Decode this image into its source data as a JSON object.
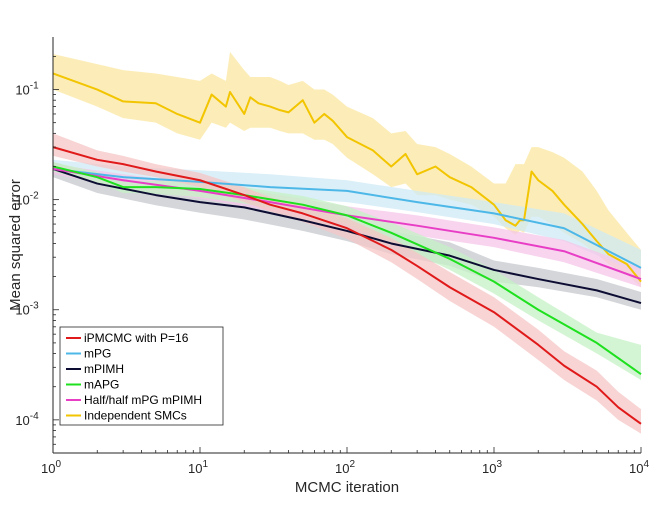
{
  "chart_data": {
    "type": "line",
    "title": "",
    "xlabel": "MCMC iteration",
    "ylabel": "Mean squared error",
    "xscale": "log",
    "yscale": "log",
    "xlim": [
      1,
      10000
    ],
    "ylim": [
      5e-05,
      0.3
    ],
    "grid": false,
    "legend_position": "bottom-left",
    "x_ticks": [
      {
        "value": 1,
        "base": "10",
        "exp": "0"
      },
      {
        "value": 10,
        "base": "10",
        "exp": "1"
      },
      {
        "value": 100,
        "base": "10",
        "exp": "2"
      },
      {
        "value": 1000,
        "base": "10",
        "exp": "3"
      },
      {
        "value": 10000,
        "base": "10",
        "exp": "4"
      }
    ],
    "y_ticks": [
      {
        "value": 0.0001,
        "base": "10",
        "exp": "-4"
      },
      {
        "value": 0.001,
        "base": "10",
        "exp": "-3"
      },
      {
        "value": 0.01,
        "base": "10",
        "exp": "-2"
      },
      {
        "value": 0.1,
        "base": "10",
        "exp": "-1"
      }
    ],
    "series": [
      {
        "name": "Independent SMCs",
        "color": "#f2c500",
        "band_color": "#fbe7a0",
        "x": [
          1,
          2,
          3,
          5,
          7,
          10,
          12,
          15,
          16,
          20,
          22,
          25,
          30,
          35,
          40,
          50,
          60,
          70,
          80,
          100,
          150,
          200,
          250,
          300,
          400,
          500,
          700,
          1000,
          1200,
          1400,
          1500,
          1600,
          1800,
          2000,
          2500,
          3000,
          4000,
          5000,
          6000,
          8000,
          10000
        ],
        "y": [
          0.14,
          0.1,
          0.078,
          0.075,
          0.06,
          0.05,
          0.09,
          0.07,
          0.095,
          0.06,
          0.085,
          0.075,
          0.07,
          0.065,
          0.062,
          0.08,
          0.05,
          0.06,
          0.052,
          0.037,
          0.028,
          0.02,
          0.026,
          0.017,
          0.02,
          0.016,
          0.013,
          0.009,
          0.0065,
          0.0058,
          0.0065,
          0.0065,
          0.018,
          0.015,
          0.012,
          0.009,
          0.006,
          0.0042,
          0.0032,
          0.0026,
          0.0018
        ],
        "lower": [
          0.1,
          0.07,
          0.055,
          0.05,
          0.04,
          0.035,
          0.05,
          0.045,
          0.05,
          0.042,
          0.045,
          0.045,
          0.045,
          0.042,
          0.04,
          0.04,
          0.035,
          0.035,
          0.032,
          0.024,
          0.017,
          0.013,
          0.014,
          0.011,
          0.011,
          0.01,
          0.009,
          0.007,
          0.0055,
          0.0048,
          0.0052,
          0.005,
          0.007,
          0.007,
          0.006,
          0.005,
          0.004,
          0.0032,
          0.0026,
          0.0021,
          0.0016
        ],
        "upper": [
          0.21,
          0.17,
          0.15,
          0.14,
          0.13,
          0.12,
          0.14,
          0.12,
          0.22,
          0.15,
          0.13,
          0.13,
          0.13,
          0.12,
          0.11,
          0.12,
          0.1,
          0.1,
          0.09,
          0.07,
          0.055,
          0.04,
          0.042,
          0.032,
          0.03,
          0.026,
          0.02,
          0.014,
          0.014,
          0.021,
          0.021,
          0.021,
          0.03,
          0.03,
          0.027,
          0.024,
          0.018,
          0.012,
          0.008,
          0.005,
          0.0035
        ]
      },
      {
        "name": "mPG",
        "color": "#4db8e8",
        "band_color": "#cfe9f6",
        "x": [
          1,
          3,
          10,
          30,
          100,
          300,
          1000,
          3000,
          10000
        ],
        "y": [
          0.019,
          0.016,
          0.0145,
          0.013,
          0.012,
          0.0095,
          0.0075,
          0.0055,
          0.0024
        ],
        "lower": [
          0.017,
          0.014,
          0.012,
          0.0105,
          0.0095,
          0.0077,
          0.006,
          0.0042,
          0.0021
        ],
        "upper": [
          0.023,
          0.02,
          0.0185,
          0.017,
          0.015,
          0.012,
          0.0095,
          0.0075,
          0.0035
        ]
      },
      {
        "name": "mPIMH",
        "color": "#0d0d33",
        "band_color": "#c6c8ce",
        "x": [
          1,
          2,
          5,
          10,
          20,
          50,
          100,
          200,
          500,
          1000,
          2000,
          5000,
          10000
        ],
        "y": [
          0.019,
          0.014,
          0.011,
          0.0095,
          0.0085,
          0.0065,
          0.0052,
          0.004,
          0.0031,
          0.0023,
          0.0019,
          0.0015,
          0.00115
        ],
        "lower": [
          0.016,
          0.0115,
          0.0089,
          0.0076,
          0.0066,
          0.0052,
          0.0042,
          0.0032,
          0.0025,
          0.0018,
          0.0016,
          0.0013,
          0.001
        ],
        "upper": [
          0.022,
          0.017,
          0.0135,
          0.0117,
          0.0105,
          0.0082,
          0.0066,
          0.0052,
          0.0041,
          0.0028,
          0.0024,
          0.0019,
          0.00145
        ]
      },
      {
        "name": "Half/half mPG mPIMH",
        "color": "#e83ec6",
        "band_color": "#f6c6ea",
        "x": [
          1,
          3,
          10,
          30,
          100,
          300,
          1000,
          3000,
          10000
        ],
        "y": [
          0.019,
          0.015,
          0.012,
          0.0095,
          0.0072,
          0.0058,
          0.0045,
          0.0034,
          0.0019
        ],
        "lower": [
          0.017,
          0.013,
          0.0102,
          0.0079,
          0.006,
          0.0047,
          0.0037,
          0.0027,
          0.0016
        ],
        "upper": [
          0.021,
          0.017,
          0.014,
          0.0114,
          0.0087,
          0.0072,
          0.0056,
          0.0043,
          0.0024
        ]
      },
      {
        "name": "mAPG",
        "color": "#1ee01e",
        "band_color": "#c6f2c6",
        "x": [
          1,
          2,
          3,
          5,
          10,
          20,
          50,
          100,
          200,
          500,
          1000,
          2000,
          5000,
          10000
        ],
        "y": [
          0.02,
          0.016,
          0.013,
          0.013,
          0.0125,
          0.011,
          0.009,
          0.0072,
          0.005,
          0.0029,
          0.0018,
          0.001,
          0.0005,
          0.00026
        ],
        "lower": [
          0.018,
          0.0142,
          0.0115,
          0.0113,
          0.0105,
          0.0092,
          0.0075,
          0.006,
          0.0041,
          0.0023,
          0.0014,
          0.0008,
          0.0004,
          0.00023
        ],
        "upper": [
          0.022,
          0.0178,
          0.0145,
          0.0148,
          0.0145,
          0.013,
          0.0108,
          0.0087,
          0.0062,
          0.0037,
          0.0023,
          0.0013,
          0.00062,
          0.00048
        ]
      },
      {
        "name": "iPMCMC with P=16",
        "color": "#e01a1a",
        "band_color": "#f6c6c6",
        "x": [
          1,
          2,
          3,
          5,
          10,
          20,
          30,
          50,
          100,
          200,
          300,
          500,
          1000,
          2000,
          3000,
          5000,
          7000,
          10000
        ],
        "y": [
          0.03,
          0.023,
          0.021,
          0.018,
          0.015,
          0.011,
          0.009,
          0.0075,
          0.0055,
          0.0035,
          0.0025,
          0.0016,
          0.00095,
          0.00048,
          0.00031,
          0.0002,
          0.00013,
          9.2e-05
        ],
        "lower": [
          0.025,
          0.02,
          0.018,
          0.016,
          0.013,
          0.0095,
          0.0078,
          0.0063,
          0.0044,
          0.0027,
          0.0019,
          0.0012,
          0.0007,
          0.00035,
          0.00023,
          0.00015,
          0.0001,
          7.5e-05
        ],
        "upper": [
          0.04,
          0.028,
          0.025,
          0.021,
          0.0175,
          0.013,
          0.0105,
          0.0088,
          0.0068,
          0.0045,
          0.0033,
          0.0022,
          0.0013,
          0.00066,
          0.00042,
          0.00028,
          0.00018,
          0.000125
        ]
      }
    ],
    "legend": [
      {
        "label": "iPMCMC with P=16",
        "color": "#e01a1a"
      },
      {
        "label": "mPG",
        "color": "#4db8e8"
      },
      {
        "label": "mPIMH",
        "color": "#0d0d33"
      },
      {
        "label": "mAPG",
        "color": "#1ee01e"
      },
      {
        "label": "Half/half mPG mPIMH",
        "color": "#e83ec6"
      },
      {
        "label": "Independent SMCs",
        "color": "#f2c500"
      }
    ]
  }
}
